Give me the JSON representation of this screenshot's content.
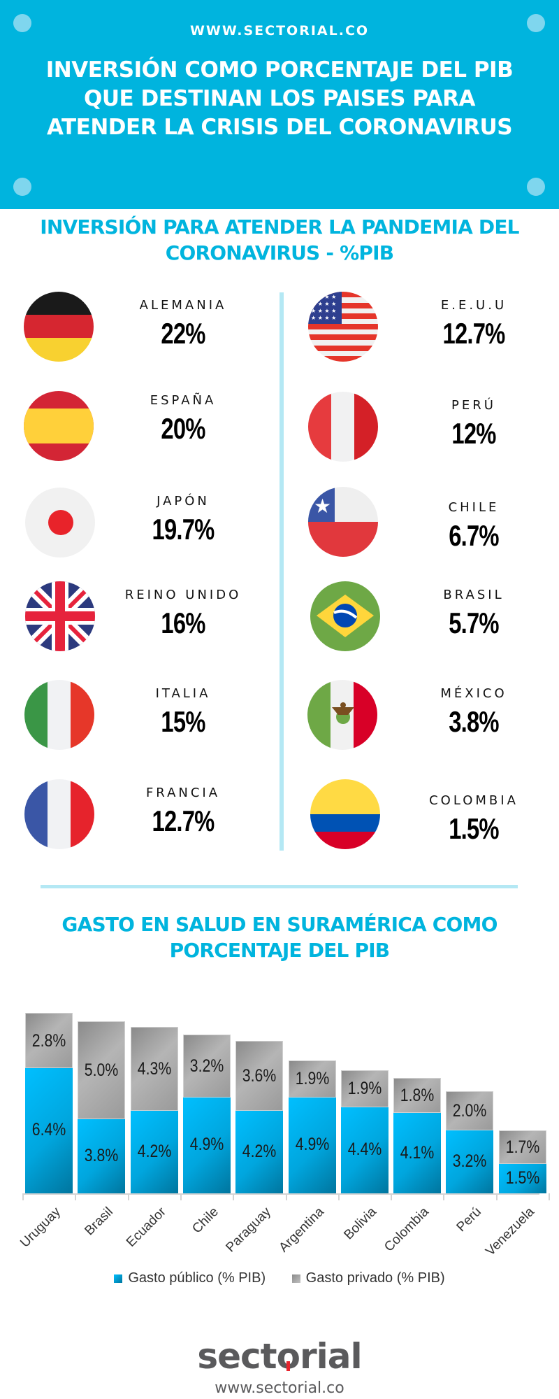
{
  "header": {
    "site_url": "WWW.SECTORIAL.CO",
    "title": "INVERSIÓN COMO PORCENTAJE DEL PIB QUE DESTINAN LOS PAISES PARA ATENDER LA CRISIS DEL CORONAVIRUS",
    "background_color": "#00B4DE"
  },
  "section1": {
    "title": "INVERSIÓN PARA ATENDER LA PANDEMIA DEL CORONAVIRUS - %PIB",
    "left_countries": [
      {
        "name": "ALEMANIA",
        "value": "22%",
        "flag": "germany-flag-icon"
      },
      {
        "name": "ESPAÑA",
        "value": "20%",
        "flag": "spain-flag-icon"
      },
      {
        "name": "JAPÓN",
        "value": "19.7%",
        "flag": "japan-flag-icon"
      },
      {
        "name": "REINO UNIDO",
        "value": "16%",
        "flag": "uk-flag-icon"
      },
      {
        "name": "ITALIA",
        "value": "15%",
        "flag": "italy-flag-icon"
      },
      {
        "name": "FRANCIA",
        "value": "12.7%",
        "flag": "france-flag-icon"
      }
    ],
    "right_countries": [
      {
        "name": "E.E.U.U",
        "value": "12.7%",
        "flag": "usa-flag-icon"
      },
      {
        "name": "PERÚ",
        "value": "12%",
        "flag": "peru-flag-icon"
      },
      {
        "name": "CHILE",
        "value": "6.7%",
        "flag": "chile-flag-icon"
      },
      {
        "name": "BRASIL",
        "value": "5.7%",
        "flag": "brazil-flag-icon"
      },
      {
        "name": "MÉXICO",
        "value": "3.8%",
        "flag": "mexico-flag-icon"
      },
      {
        "name": "COLOMBIA",
        "value": "1.5%",
        "flag": "colombia-flag-icon"
      }
    ]
  },
  "section2": {
    "title": "GASTO EN SALUD EN SURAMÉRICA COMO PORCENTAJE DEL PIB"
  },
  "chart_data": [
    {
      "type": "table",
      "title": "INVERSIÓN PARA ATENDER LA PANDEMIA DEL CORONAVIRUS - %PIB",
      "categories": [
        "Alemania",
        "España",
        "Japón",
        "Reino Unido",
        "Italia",
        "Francia",
        "E.E.U.U",
        "Perú",
        "Chile",
        "Brasil",
        "México",
        "Colombia"
      ],
      "values": [
        22,
        20,
        19.7,
        16,
        15,
        12.7,
        12.7,
        12,
        6.7,
        5.7,
        3.8,
        1.5
      ],
      "unit": "% PIB"
    },
    {
      "type": "bar",
      "stacked": true,
      "title": "GASTO EN SALUD EN SURAMÉRICA COMO PORCENTAJE DEL PIB",
      "categories": [
        "Uruguay",
        "Brasil",
        "Ecuador",
        "Chile",
        "Paraguay",
        "Argentina",
        "Bolivia",
        "Colombia",
        "Perú",
        "Venezuela"
      ],
      "series": [
        {
          "name": "Gasto público (% PIB)",
          "color": "#00A6DE",
          "values": [
            6.4,
            3.8,
            4.2,
            4.9,
            4.2,
            4.9,
            4.4,
            4.1,
            3.2,
            1.5
          ],
          "labels": [
            "6.4%",
            "3.8%",
            "4.2%",
            "4.9%",
            "4.2%",
            "4.9%",
            "4.4%",
            "4.1%",
            "3.2%",
            "1.5%"
          ]
        },
        {
          "name": "Gasto privado (% PIB)",
          "color": "#A0A0A0",
          "values": [
            2.8,
            5.0,
            4.3,
            3.2,
            3.6,
            1.9,
            1.9,
            1.8,
            2.0,
            1.7
          ],
          "labels": [
            "2.8%",
            "5.0%",
            "4.3%",
            "3.2%",
            "3.6%",
            "1.9%",
            "1.9%",
            "1.8%",
            "2.0%",
            "1.7%"
          ]
        }
      ],
      "xlabel": "",
      "ylabel": "",
      "grid": false,
      "legend_position": "bottom"
    }
  ],
  "legend": {
    "public": "Gasto público (% PIB)",
    "private": "Gasto privado (% PIB)"
  },
  "footer": {
    "logo_text_a": "sect",
    "logo_text_o": "o",
    "logo_text_b": "rial",
    "url": "www.sectorial.co"
  }
}
